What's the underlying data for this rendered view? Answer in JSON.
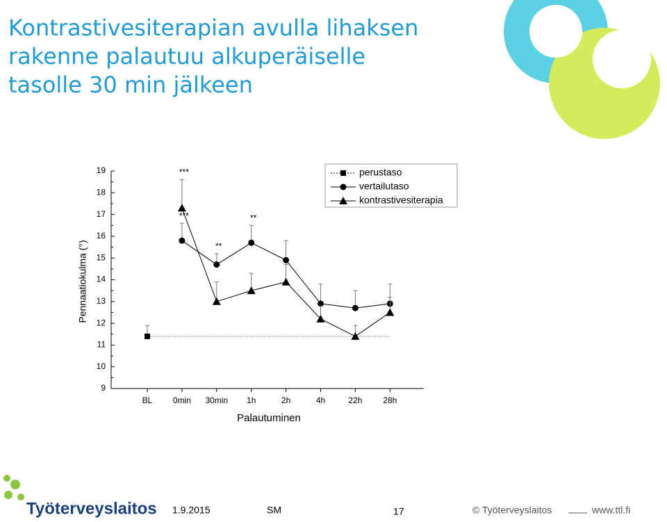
{
  "header": {
    "title_lines": [
      "Kontrastivesiterapian avulla lihaksen",
      "rakenne palautuu alkuperäiselle",
      "tasolle 30 min jälkeen"
    ]
  },
  "chart_data": {
    "type": "line",
    "x_label": "Palautuminen",
    "y_label": "Pennaatiokulma (°)",
    "categories": [
      "BL",
      "0min",
      "30min",
      "1h",
      "2h",
      "4h",
      "22h",
      "28h"
    ],
    "ylim": [
      9,
      19
    ],
    "yticks": [
      9,
      10,
      11,
      12,
      13,
      14,
      15,
      16,
      17,
      18,
      19
    ],
    "legend": "top-right",
    "series": [
      {
        "name": "perustaso",
        "color": "#000000",
        "marker": "square",
        "dash": "dotted",
        "values": [
          11.4,
          11.4,
          11.4,
          11.4,
          11.4,
          11.4,
          11.4,
          11.4
        ],
        "errors": [
          0.5,
          null,
          null,
          null,
          null,
          null,
          null,
          null
        ]
      },
      {
        "name": "vertailutaso",
        "color": "#000000",
        "marker": "circle",
        "dash": "solid",
        "values": [
          null,
          15.8,
          14.7,
          15.7,
          14.9,
          12.9,
          12.7,
          12.9
        ],
        "errors": [
          null,
          0.8,
          0.5,
          0.8,
          0.9,
          0.9,
          0.8,
          0.9
        ]
      },
      {
        "name": "kontrastivesiterapia",
        "color": "#000000",
        "marker": "triangle",
        "dash": "solid",
        "values": [
          null,
          17.3,
          13.0,
          13.5,
          13.9,
          12.2,
          11.4,
          12.5
        ],
        "errors": [
          null,
          1.3,
          0.9,
          0.8,
          0.8,
          0.6,
          0.5,
          0.7
        ]
      }
    ],
    "annotations": [
      {
        "text": "***",
        "category": "0min",
        "series": "kontrastivesiterapia"
      },
      {
        "text": "***",
        "category": "0min",
        "series": "vertailutaso"
      },
      {
        "text": "**",
        "category": "30min",
        "series": "vertailutaso"
      },
      {
        "text": "**",
        "category": "1h",
        "series": "vertailutaso"
      }
    ]
  },
  "footer": {
    "logo": "Työterveyslaitos",
    "date": "1.9.2015",
    "author": "SM",
    "page": "17",
    "copyright": "© Työterveyslaitos",
    "url": "www.ttl.fi"
  }
}
